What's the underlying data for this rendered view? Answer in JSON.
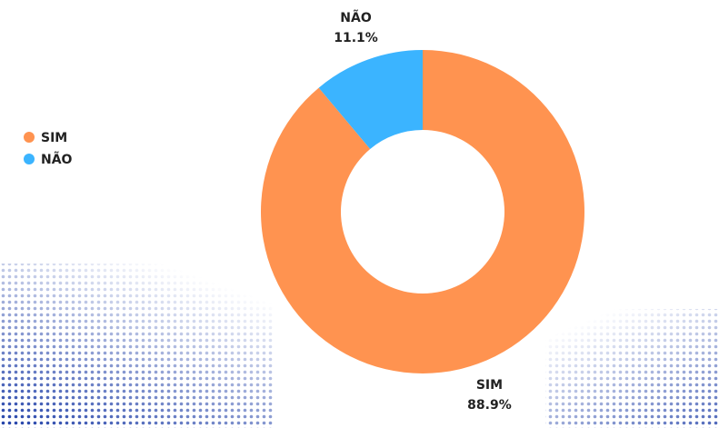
{
  "chart_data": {
    "type": "donut",
    "categories": [
      "SIM",
      "NÃO"
    ],
    "values": [
      88.9,
      11.1
    ],
    "value_labels": [
      "88.9%",
      "11.1%"
    ],
    "colors": [
      "#ff9350",
      "#3bb4ff"
    ],
    "legend": "left"
  }
}
